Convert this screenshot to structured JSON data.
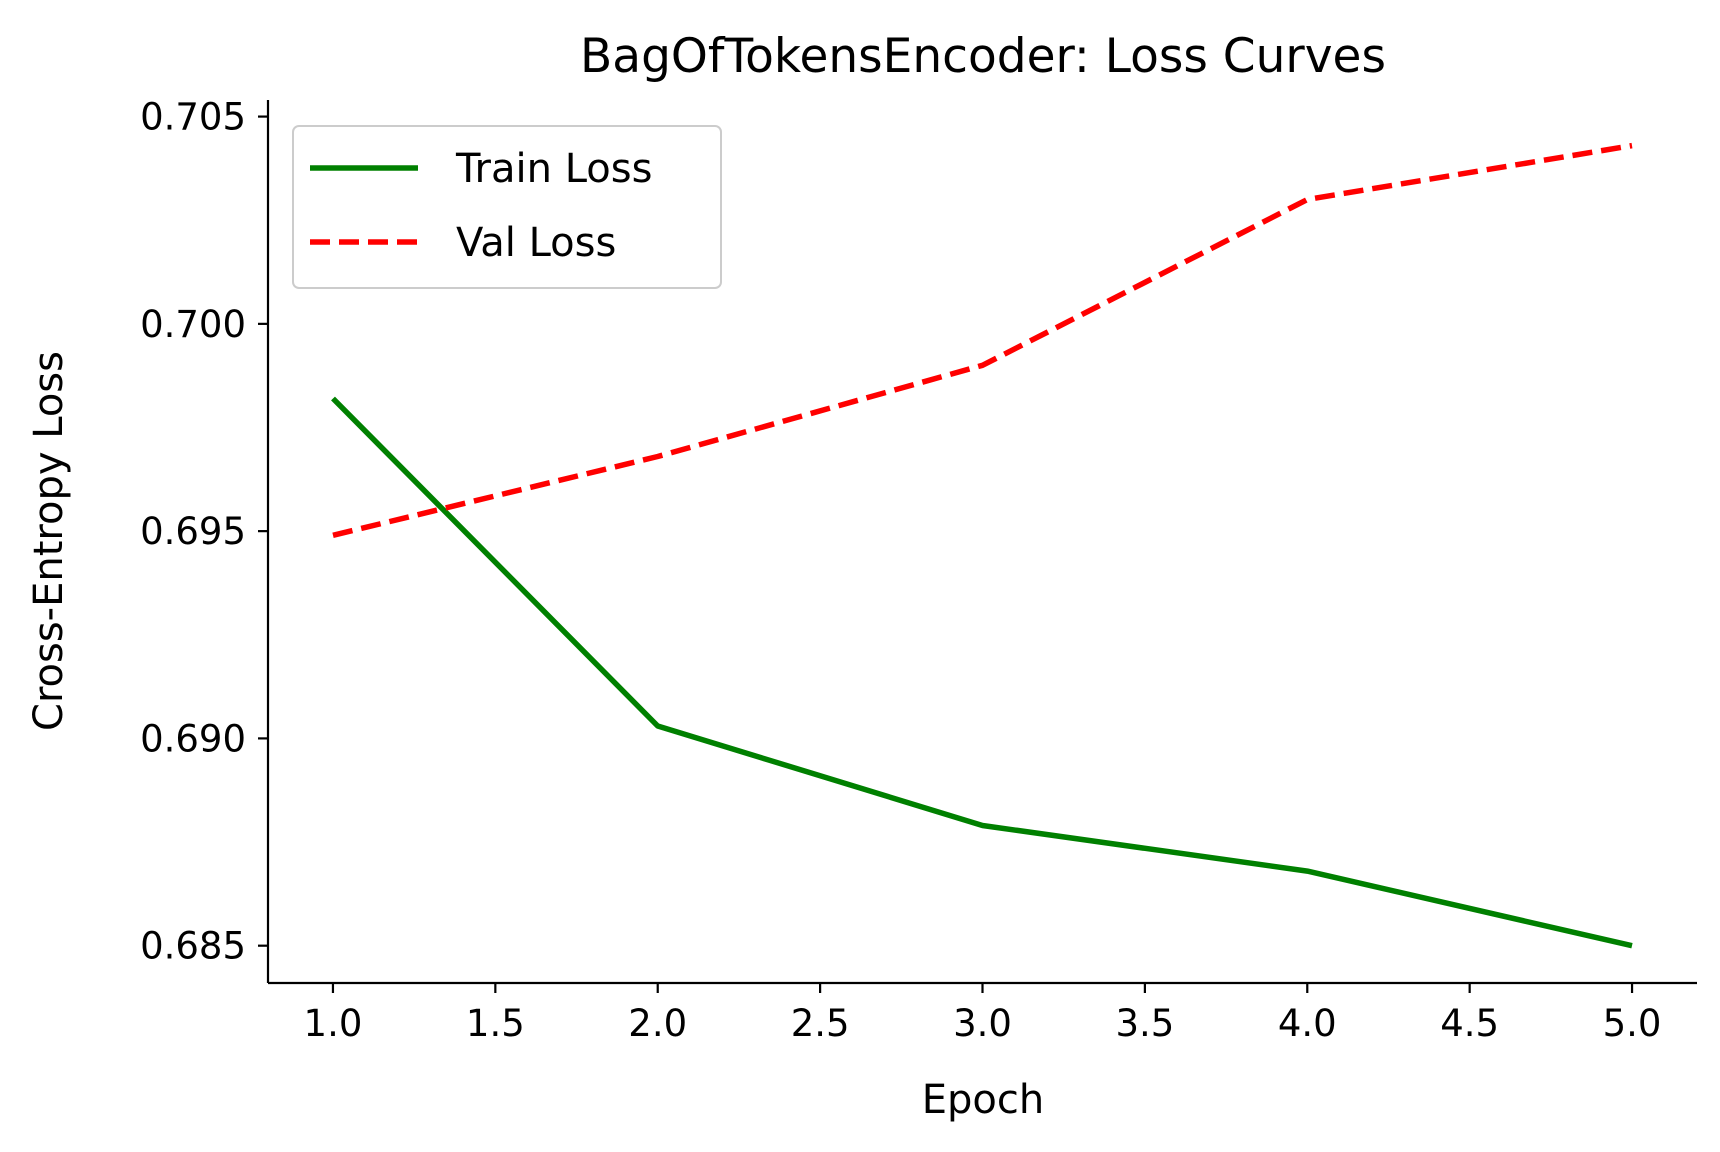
{
  "chart_data": {
    "type": "line",
    "title": "BagOfTokensEncoder: Loss Curves",
    "xlabel": "Epoch",
    "ylabel": "Cross-Entropy Loss",
    "x": [
      1,
      2,
      3,
      4,
      5
    ],
    "xlim": [
      0.8,
      5.2
    ],
    "ylim": [
      0.6841,
      0.7054
    ],
    "xticks": [
      1.0,
      1.5,
      2.0,
      2.5,
      3.0,
      3.5,
      4.0,
      4.5,
      5.0
    ],
    "xtick_labels": [
      "1.0",
      "1.5",
      "2.0",
      "2.5",
      "3.0",
      "3.5",
      "4.0",
      "4.5",
      "5.0"
    ],
    "yticks": [
      0.685,
      0.69,
      0.695,
      0.7,
      0.705
    ],
    "ytick_labels": [
      "0.685",
      "0.690",
      "0.695",
      "0.700",
      "0.705"
    ],
    "grid": false,
    "legend_position": "top-left",
    "series": [
      {
        "name": "Train Loss",
        "values": [
          0.6982,
          0.6903,
          0.6879,
          0.6868,
          0.685
        ],
        "color": "#008000",
        "style": "solid"
      },
      {
        "name": "Val Loss",
        "values": [
          0.6949,
          0.6968,
          0.699,
          0.703,
          0.7043
        ],
        "color": "#ff0000",
        "style": "dashed"
      }
    ]
  }
}
